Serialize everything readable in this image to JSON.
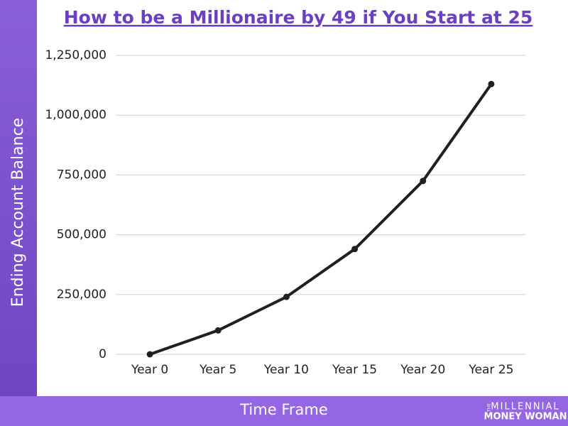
{
  "chart_data": {
    "type": "line",
    "title": "How to be a Millionaire by 49 if You Start at 25",
    "x_label": "Time Frame",
    "y_label": "Ending Account Balance",
    "categories": [
      "Year 0",
      "Year 5",
      "Year 10",
      "Year 15",
      "Year 20",
      "Year 25"
    ],
    "values": [
      0,
      100000,
      240000,
      440000,
      725000,
      1130000
    ],
    "color": "#231f20",
    "ylim": [
      0,
      1250000
    ],
    "yticks": [
      0,
      {
        "value": 250000,
        "label": "250,000"
      },
      {
        "value": 500000,
        "label": "500,000"
      },
      {
        "value": 750000,
        "label": "750,000"
      },
      {
        "value": 1000000,
        "label": "1,000,000"
      },
      {
        "value": 1250000,
        "label": "1,250,000"
      }
    ],
    "grid": true,
    "annotations": [
      "THE",
      "MILLENNIAL",
      "MONEY WOMAN"
    ]
  }
}
